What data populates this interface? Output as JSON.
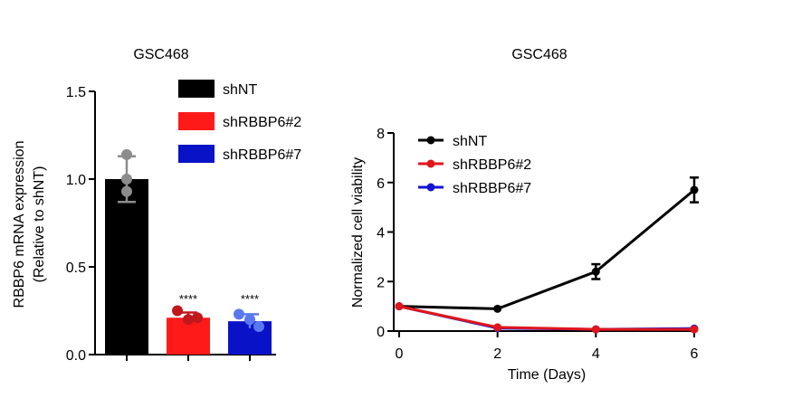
{
  "chart_data": [
    {
      "type": "bar",
      "title": "GSC468",
      "xlabel": "",
      "ylabel_lines": [
        "RBBP6 mRNA expression",
        "(Relative to shNT)"
      ],
      "ylim": [
        0,
        1.5
      ],
      "yticks": [
        "0.0",
        "0.5",
        "1.0",
        "1.5"
      ],
      "ytick_values": [
        0,
        0.5,
        1.0,
        1.5
      ],
      "legend_position": "top-right",
      "series": [
        {
          "name": "shNT",
          "value": 1.0,
          "err": 0.13,
          "points": [
            1.14,
            1.0,
            0.93
          ],
          "color": "#000000",
          "point_color": "#8c8c8c",
          "annotation": ""
        },
        {
          "name": "shRBBP6#2",
          "value": 0.21,
          "err": 0.03,
          "points": [
            0.25,
            0.2,
            0.21
          ],
          "color": "#ff1a1a",
          "point_color": "#c0181c",
          "annotation": "****"
        },
        {
          "name": "shRBBP6#7",
          "value": 0.19,
          "err": 0.04,
          "points": [
            0.23,
            0.2,
            0.16
          ],
          "color": "#0a12c8",
          "point_color": "#5a78f0",
          "annotation": "****"
        }
      ]
    },
    {
      "type": "line",
      "title": "GSC468",
      "xlabel": "Time (Days)",
      "ylabel": "Normalized cell viability",
      "xlim": [
        0,
        6
      ],
      "ylim": [
        0,
        8
      ],
      "xticks": [
        "0",
        "2",
        "4",
        "6"
      ],
      "xtick_values": [
        0,
        2,
        4,
        6
      ],
      "yticks": [
        "0",
        "2",
        "4",
        "6",
        "8"
      ],
      "ytick_values": [
        0,
        2,
        4,
        6,
        8
      ],
      "legend_position": "top-left",
      "x": [
        0,
        2,
        4,
        6
      ],
      "series": [
        {
          "name": "shNT",
          "color": "#000000",
          "values": [
            1.0,
            0.9,
            2.4,
            5.7
          ],
          "err": [
            0.05,
            0.05,
            0.3,
            0.5
          ]
        },
        {
          "name": "shRBBP6#2",
          "color": "#e0161c",
          "values": [
            1.0,
            0.15,
            0.07,
            0.07
          ],
          "err": [
            0,
            0.03,
            0.02,
            0.02
          ]
        },
        {
          "name": "shRBBP6#7",
          "color": "#1414d2",
          "values": [
            1.0,
            0.12,
            0.07,
            0.1
          ],
          "err": [
            0,
            0.03,
            0.02,
            0.02
          ]
        }
      ]
    }
  ]
}
